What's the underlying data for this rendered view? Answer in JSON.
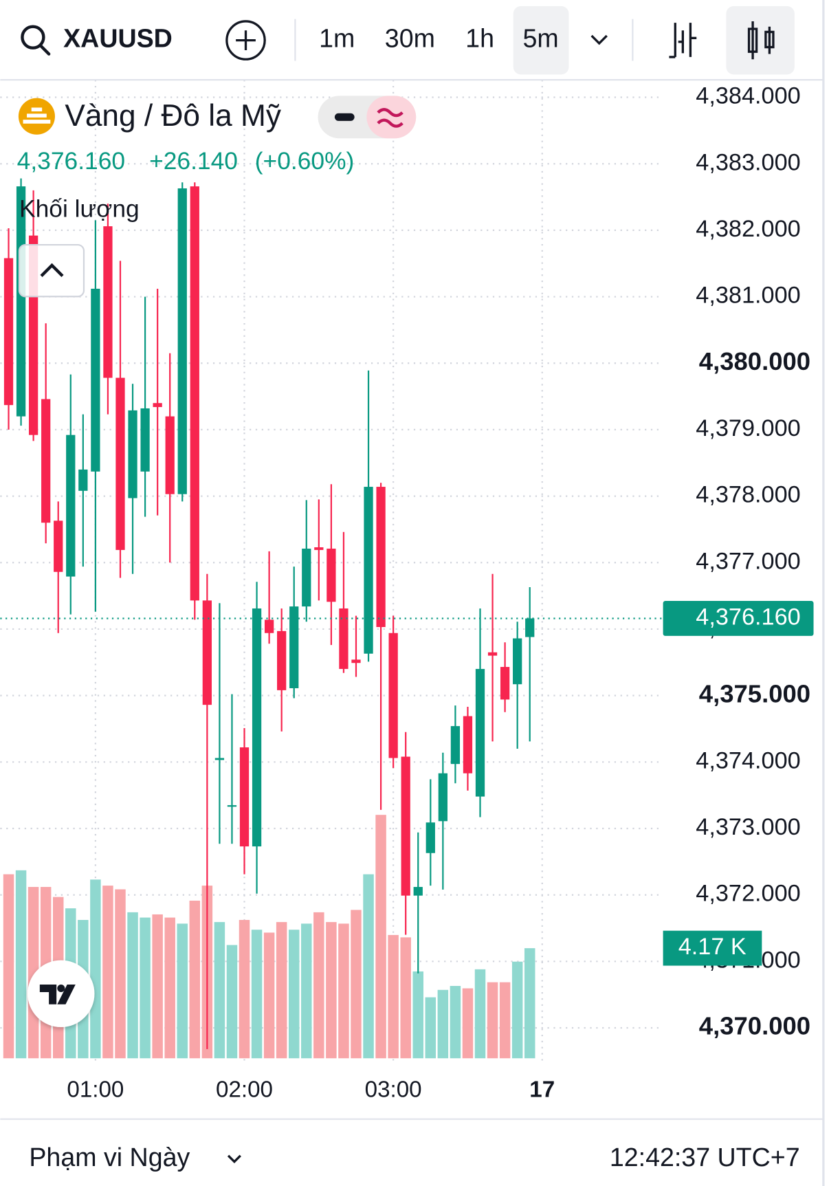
{
  "header": {
    "symbol": "XAUUSD",
    "intervals": [
      "1m",
      "30m",
      "1h",
      "5m"
    ],
    "active_interval": "5m"
  },
  "legend": {
    "title": "Vàng / Đô la Mỹ",
    "price": "4,376.160",
    "change": "+26.140",
    "change_pct": "(+0.60%)",
    "volume_title": "Khối lượng"
  },
  "footer": {
    "range": "Phạm vi Ngày",
    "clock": "12:42:37 UTC+7"
  },
  "chart_data": {
    "type": "candlestick",
    "up_color": "#089981",
    "down_color": "#f7254f",
    "volume_up_color": "#8fd8cf",
    "volume_down_color": "#f8a5a8",
    "open": [
      4381.58,
      4379.2,
      4381.92,
      4379.46,
      4377.63,
      4376.79,
      4378.08,
      4378.37,
      4382.06,
      4379.78,
      4377.97,
      4378.37,
      4379.4,
      4379.2,
      4378.03,
      4382.66,
      4376.43,
      4374.03,
      4373.33,
      4374.22,
      4372.73,
      4376.14,
      4375.97,
      4375.11,
      4376.34,
      4377.23,
      4377.21,
      4376.31,
      4375.54,
      4375.63,
      4378.14,
      4375.94,
      4374.08,
      4371.99,
      4372.63,
      4373.11,
      4373.97,
      4374.69,
      4373.48,
      4375.65,
      4375.43,
      4375.17,
      4375.88
    ],
    "high": [
      4382.03,
      4382.78,
      4382.6,
      4380.6,
      4377.92,
      4379.83,
      4379.23,
      4382.15,
      4382.4,
      4381.54,
      4379.69,
      4381.0,
      4381.12,
      4380.15,
      4382.72,
      4382.72,
      4376.83,
      4376.39,
      4375.02,
      4374.51,
      4376.71,
      4377.17,
      4376.31,
      4376.94,
      4377.94,
      4377.95,
      4378.18,
      4377.46,
      4376.2,
      4379.89,
      4378.2,
      4376.2,
      4374.45,
      4372.94,
      4373.74,
      4374.14,
      4374.85,
      4374.83,
      4376.31,
      4376.83,
      4375.8,
      4376.11,
      4376.63
    ],
    "low": [
      4379.0,
      4379.06,
      4378.83,
      4377.29,
      4375.94,
      4376.22,
      4376.94,
      4376.26,
      4379.23,
      4376.77,
      4376.83,
      4377.69,
      4377.71,
      4377.0,
      4377.92,
      4376.14,
      4369.68,
      4372.77,
      4372.77,
      4372.31,
      4372.02,
      4375.78,
      4374.46,
      4374.96,
      4376.11,
      4376.43,
      4375.76,
      4375.34,
      4375.28,
      4375.51,
      4373.28,
      4373.91,
      4371.4,
      4370.82,
      4372.14,
      4372.08,
      4373.68,
      4373.57,
      4373.17,
      4374.31,
      4374.75,
      4374.2,
      4374.31
    ],
    "close": [
      4379.37,
      4382.66,
      4378.92,
      4377.6,
      4376.86,
      4378.92,
      4378.4,
      4381.12,
      4379.78,
      4377.19,
      4379.29,
      4379.32,
      4379.34,
      4378.03,
      4382.63,
      4376.43,
      4374.86,
      4374.06,
      4373.35,
      4372.73,
      4376.31,
      4375.94,
      4375.08,
      4376.34,
      4377.21,
      4377.19,
      4376.41,
      4375.4,
      4375.49,
      4378.14,
      4376.03,
      4374.06,
      4371.99,
      4372.12,
      4373.09,
      4373.83,
      4374.54,
      4373.83,
      4375.4,
      4375.6,
      4374.94,
      4375.86,
      4376.16
    ],
    "volume": [
      6.97,
      7.12,
      6.49,
      6.49,
      6.11,
      5.68,
      5.24,
      6.77,
      6.54,
      6.4,
      5.53,
      5.33,
      5.45,
      5.33,
      5.1,
      5.97,
      6.54,
      5.16,
      4.29,
      5.24,
      4.87,
      4.76,
      5.16,
      4.87,
      5.1,
      5.53,
      5.16,
      5.1,
      5.62,
      6.97,
      9.22,
      4.67,
      4.58,
      3.29,
      2.31,
      2.59,
      2.74,
      2.65,
      3.37,
      2.88,
      2.88,
      3.66,
      4.17
    ],
    "volume_label": "4.17 K",
    "volume_lim": [
      0,
      36.4
    ],
    "ylim": [
      4384.0,
      4370.0
    ],
    "yticks": [
      {
        "value": 4384,
        "label": "4,384.000"
      },
      {
        "value": 4383,
        "label": "4,383.000"
      },
      {
        "value": 4382,
        "label": "4,382.000"
      },
      {
        "value": 4381,
        "label": "4,381.000"
      },
      {
        "value": 4380,
        "label": "4,380.000"
      },
      {
        "value": 4379,
        "label": "4,379.000"
      },
      {
        "value": 4378,
        "label": "4,378.000"
      },
      {
        "value": 4377,
        "label": "4,377.000"
      },
      {
        "value": 4376,
        "label": "4,376.000"
      },
      {
        "value": 4375,
        "label": "4,375.000"
      },
      {
        "value": 4374,
        "label": "4,374.000"
      },
      {
        "value": 4373,
        "label": "4,373.000"
      },
      {
        "value": 4372,
        "label": "4,372.000"
      },
      {
        "value": 4371,
        "label": "4,371.000"
      },
      {
        "value": 4370,
        "label": "4,370.000"
      }
    ],
    "bold_yticks": [
      4380,
      4375,
      4370
    ],
    "last_price": {
      "value": 4376.16,
      "label": "4,376.160"
    },
    "xlim": [
      0,
      43
    ],
    "xticks": [
      {
        "value": 7,
        "label": "01:00"
      },
      {
        "value": 19,
        "label": "02:00"
      },
      {
        "value": 31,
        "label": "03:00"
      },
      {
        "value": 43,
        "label": "17"
      }
    ],
    "grid": true
  }
}
